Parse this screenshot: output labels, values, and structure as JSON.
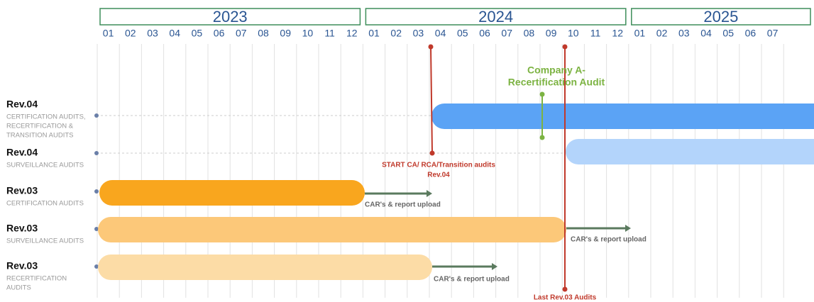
{
  "header": {
    "years": [
      {
        "label": "2023",
        "months": [
          "01",
          "02",
          "03",
          "04",
          "05",
          "06",
          "07",
          "08",
          "09",
          "10",
          "11",
          "12"
        ]
      },
      {
        "label": "2024",
        "months": [
          "01",
          "02",
          "03",
          "04",
          "05",
          "06",
          "07",
          "08",
          "09",
          "10",
          "11",
          "12"
        ]
      },
      {
        "label": "2025",
        "months": [
          "01",
          "02",
          "03",
          "04",
          "05",
          "06",
          "07"
        ]
      }
    ]
  },
  "rows": [
    {
      "title": "Rev.04",
      "subtitle": [
        "CERTIFICATION AUDITS,",
        "RECERTIFICATION &",
        "TRANSITION AUDITS"
      ]
    },
    {
      "title": "Rev.04",
      "subtitle": [
        "SURVEILLANCE AUDITS"
      ]
    },
    {
      "title": "Rev.03",
      "subtitle": [
        "CERTIFICATION AUDITS"
      ]
    },
    {
      "title": "Rev.03",
      "subtitle": [
        "SURVEILLANCE AUDITS"
      ]
    },
    {
      "title": "Rev.03",
      "subtitle": [
        "RECERTIFICATION",
        "AUDITS"
      ]
    }
  ],
  "annotations": {
    "company": [
      "Company A-",
      "Recertification Audit"
    ],
    "start": [
      "START CA/ RCA/Transition audits",
      "Rev.04"
    ],
    "last": "Last Rev.03 Audits",
    "car": [
      "CAR's & report upload",
      "CAR's & report upload",
      "CAR's & report upload"
    ]
  }
}
